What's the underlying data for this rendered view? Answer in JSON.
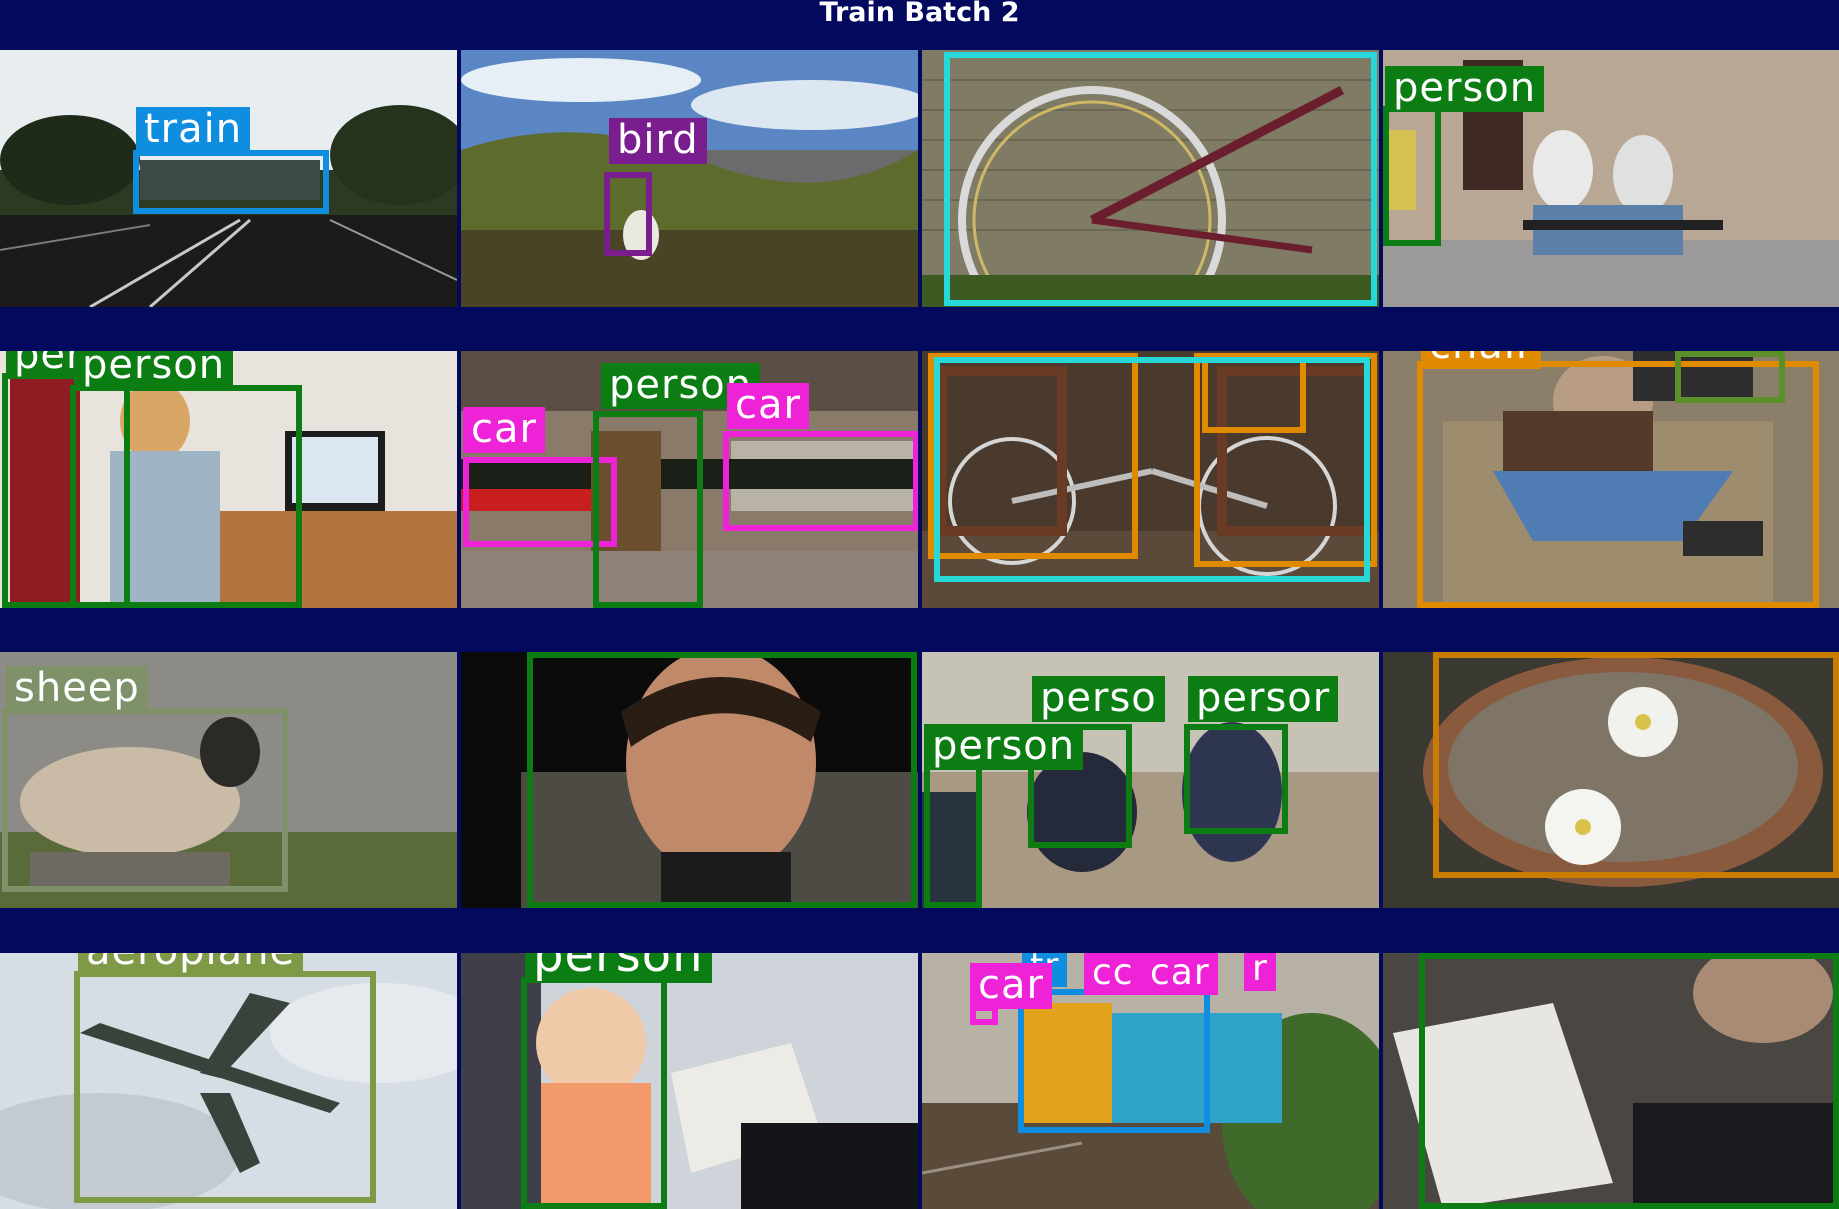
{
  "title": "Train Batch 2",
  "colors": {
    "background": "#030a5e",
    "train": "#0f8ee0",
    "bird": "#7a1e8f",
    "bicycle": "#27d8d8",
    "person": "#0b7d12",
    "car": "#ee22d6",
    "chair": "#e08a00",
    "sheep": "#7e9169",
    "potted_plant": "#c97c00",
    "aeroplane": "#7e9a46",
    "dining_table": "#5a8f2a"
  },
  "tiles": [
    {
      "labels": [
        "train"
      ]
    },
    {
      "labels": [
        "bird"
      ]
    },
    {
      "labels": []
    },
    {
      "labels": [
        "person"
      ]
    },
    {
      "labels": [
        "person",
        "person"
      ]
    },
    {
      "labels": [
        "car",
        "person",
        "car"
      ]
    },
    {
      "labels": []
    },
    {
      "labels": [
        "chair"
      ]
    },
    {
      "labels": [
        "sheep"
      ]
    },
    {
      "labels": []
    },
    {
      "labels": [
        "person",
        "perso",
        "persor"
      ]
    },
    {
      "labels": []
    },
    {
      "labels": [
        "aeroplane"
      ]
    },
    {
      "labels": [
        "person"
      ]
    },
    {
      "labels": [
        "car",
        "cc",
        "car",
        "r",
        "tr"
      ]
    },
    {
      "labels": []
    }
  ]
}
